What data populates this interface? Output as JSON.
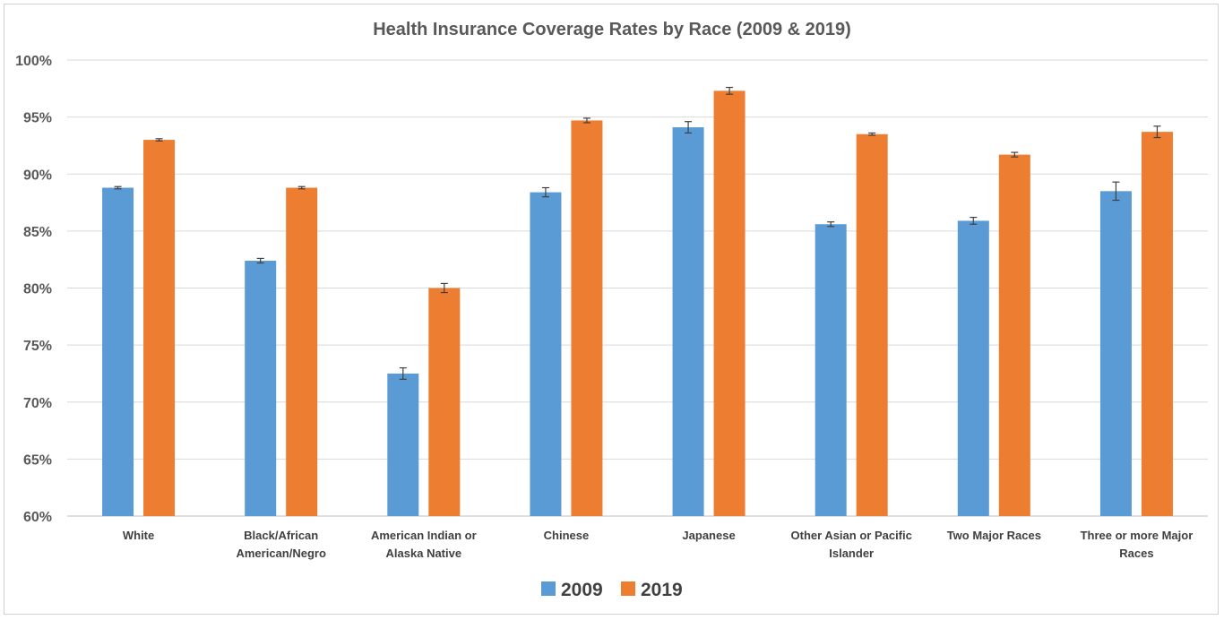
{
  "chart_data": {
    "type": "bar",
    "title": "Health Insurance Coverage Rates by Race (2009 & 2019)",
    "xlabel": "",
    "ylabel": "",
    "ylim": [
      0.6,
      1.0
    ],
    "yticks": [
      "60%",
      "65%",
      "70%",
      "75%",
      "80%",
      "85%",
      "90%",
      "95%",
      "100%"
    ],
    "grid": true,
    "legend_position": "bottom",
    "categories": [
      [
        "White"
      ],
      [
        "Black/African",
        "American/Negro"
      ],
      [
        "American Indian or",
        "Alaska Native"
      ],
      [
        "Chinese"
      ],
      [
        "Japanese"
      ],
      [
        "Other Asian or Pacific",
        "Islander"
      ],
      [
        "Two Major Races"
      ],
      [
        "Three or more Major",
        "Races"
      ]
    ],
    "series": [
      {
        "name": "2009",
        "color": "#5b9bd5",
        "values": [
          0.888,
          0.824,
          0.725,
          0.884,
          0.941,
          0.856,
          0.859,
          0.885
        ],
        "errors": [
          0.001,
          0.002,
          0.005,
          0.004,
          0.005,
          0.002,
          0.003,
          0.008
        ]
      },
      {
        "name": "2019",
        "color": "#ed7d31",
        "values": [
          0.93,
          0.888,
          0.8,
          0.947,
          0.973,
          0.935,
          0.917,
          0.937
        ],
        "errors": [
          0.001,
          0.001,
          0.004,
          0.002,
          0.003,
          0.001,
          0.002,
          0.005
        ]
      }
    ]
  }
}
